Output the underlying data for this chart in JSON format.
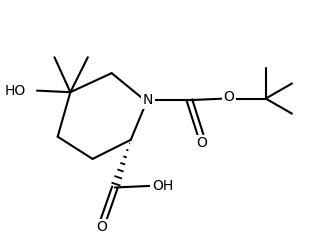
{
  "background": "#ffffff",
  "line_color": "#000000",
  "line_width": 1.5,
  "figsize": [
    3.22,
    2.37
  ],
  "dpi": 100,
  "font_size": 10,
  "xlim": [
    0,
    10
  ],
  "ylim": [
    0,
    7.37
  ]
}
